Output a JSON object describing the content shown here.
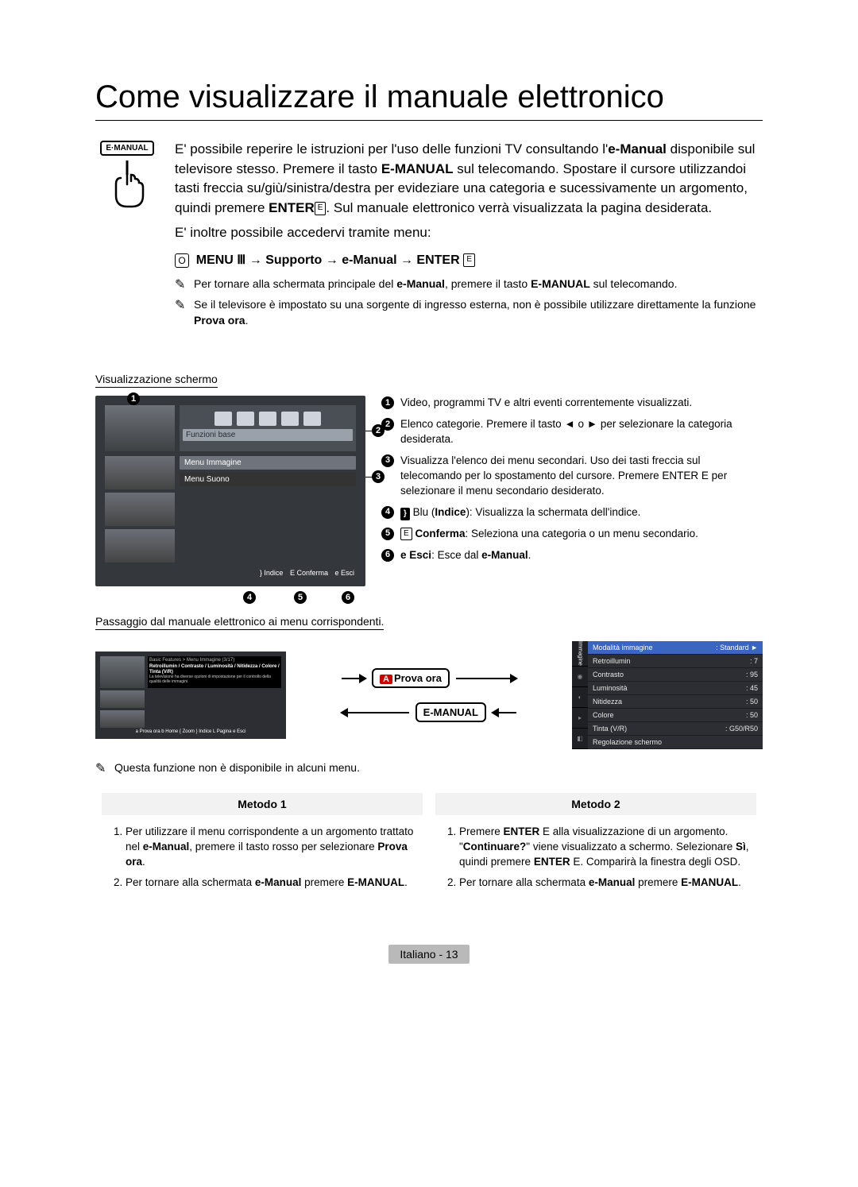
{
  "title": "Come visualizzare il manuale elettronico",
  "remote_button_label": "E·MANUAL",
  "intro_paragraph_parts": {
    "p1a": "E' possibile reperire le istruzioni per l'uso delle funzioni TV consultando l'",
    "p1b": "e-Manual",
    "p1c": " disponibile sul televisore stesso. Premere il tasto ",
    "p1d": "E-MANUAL",
    "p1e": " sul telecomando. Spostare il cursore utilizzandoi tasti freccia su/giù/sinistra/destra per evideziare una categoria e sucessivamente un argomento, quindi premere ",
    "p1f": "ENTER",
    "p1g": ". Sul manuale elettronico verrà visualizzata la pagina desiderata.",
    "p2": "E' inoltre possibile accedervi tramite menu:"
  },
  "menu_path": "MENU Ⅲ → Supporto → e-Manual → ENTER",
  "notes": [
    {
      "a": "Per tornare alla schermata principale del ",
      "b": "e-Manual",
      "c": ", premere il tasto ",
      "d": "E-MANUAL",
      "e": " sul telecomando."
    },
    {
      "a": "Se il televisore è impostato su una sorgente di ingresso esterna, non è possibile utilizzare direttamente la funzione ",
      "b": "Prova ora",
      "c": "."
    }
  ],
  "section_screen": "Visualizzazione schermo",
  "tv_ui": {
    "tab": "Funzioni base",
    "menu_rows": [
      "Menu Immagine",
      "Menu Suono"
    ],
    "footer_items": [
      "} Indice",
      "E Conferma",
      "e Esci"
    ]
  },
  "legend": [
    "Video, programmi TV e altri eventi correntemente visualizzati.",
    "Elenco categorie. Premere il tasto ◄ o ► per selezionare la categoria desiderata.",
    "Visualizza l'elenco dei menu secondari. Uso dei tasti freccia sul telecomando per lo spostamento del cursore. Premere ENTER E per selezionare il menu secondario desiderato."
  ],
  "legend_456": {
    "l4_key": "}",
    "l4_a": " Blu (",
    "l4_b": "Indice",
    "l4_c": "): Visualizza la schermata dell'indice.",
    "l5_icon": "E",
    "l5_a": " ",
    "l5_b": "Conferma",
    "l5_c": ": Seleziona una categoria o un menu secondario.",
    "l6_icon": "e",
    "l6_a": " ",
    "l6_b": "Esci",
    "l6_c": ": Esce dal ",
    "l6_d": "e-Manual",
    "l6_e": "."
  },
  "section_pass": "Passaggio dal manuale elettronico ai menu corrispondenti.",
  "pill_prova": "Prova ora",
  "pill_emanual": "E-MANUAL",
  "mini_tv": {
    "header": "Basic Features > Menu Immagine (3/17)",
    "title_line": "Retroillumin / Contrasto / Luminosità / Nitidezza / Colore / Tinta (V/R)",
    "body": "La televisione ha diverse opzioni di impostazione per il controllo della qualità delle immagini.",
    "footer": "a Prova ora  b Home  { Zoom  } Indice  L Pagina  e Esci"
  },
  "osd": {
    "side_label": "Immagine",
    "rows": [
      {
        "k": "Modalità immagine",
        "v": ": Standard   ►",
        "sel": true
      },
      {
        "k": "Retroillumin",
        "v": ": 7"
      },
      {
        "k": "Contrasto",
        "v": ": 95"
      },
      {
        "k": "Luminosità",
        "v": ": 45"
      },
      {
        "k": "Nitidezza",
        "v": ": 50"
      },
      {
        "k": "Colore",
        "v": ": 50"
      },
      {
        "k": "Tinta (V/R)",
        "v": ": G50/R50"
      },
      {
        "k": "Regolazione schermo",
        "v": ""
      }
    ]
  },
  "note_unavailable": "Questa funzione non è disponibile in alcuni menu.",
  "methods": {
    "h1": "Metodo 1",
    "h2": "Metodo 2",
    "m1": [
      {
        "a": "Per utilizzare il menu corrispondente a un argomento trattato nel ",
        "b": "e-Manual",
        "c": ", premere il tasto rosso per selezionare ",
        "d": "Prova ora",
        "e": "."
      },
      {
        "a": "Per tornare alla schermata ",
        "b": "e-Manual",
        "c": " premere ",
        "d": "E-MANUAL",
        "e": "."
      }
    ],
    "m2": [
      {
        "a": "Premere ",
        "b": "ENTER",
        "c": " E alla visualizzazione di un argomento. \"",
        "d": "Continuare?",
        "e": "\" viene visualizzato a schermo. Selezionare ",
        "f": "Sì",
        "g": ", quindi premere ",
        "h": "ENTER",
        "i": " E. Comparirà la finestra degli OSD."
      },
      {
        "a": "Per tornare alla schermata ",
        "b": "e-Manual",
        "c": " premere ",
        "d": "E-MANUAL",
        "e": "."
      }
    ]
  },
  "footer": {
    "lang": "Italiano",
    "sep": " - ",
    "page": "13"
  }
}
